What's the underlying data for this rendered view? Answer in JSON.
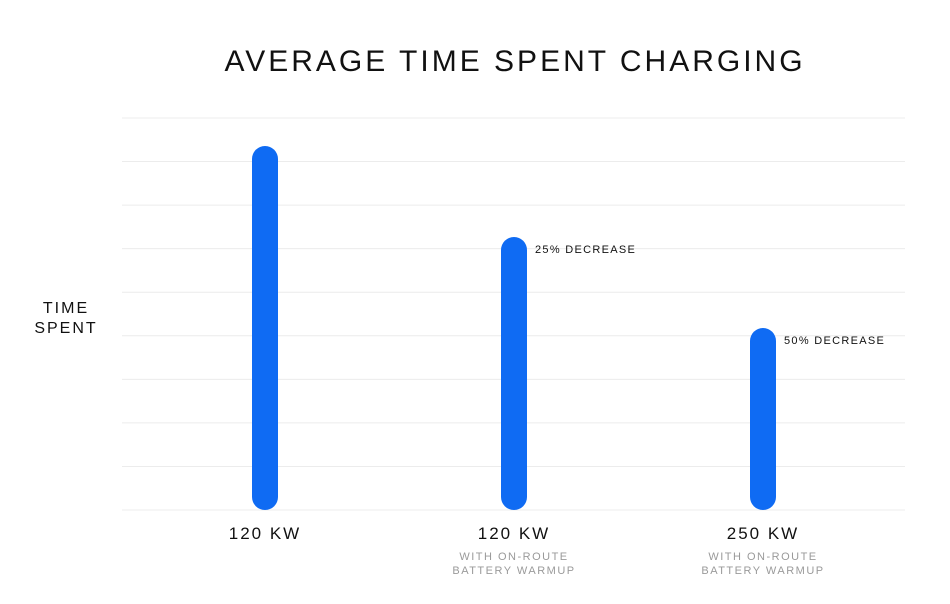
{
  "chart_data": {
    "type": "bar",
    "title": "AVERAGE TIME SPENT CHARGING",
    "ylabel_lines": [
      "TIME",
      "SPENT"
    ],
    "categories": [
      "120 KW",
      "120 KW",
      "250 KW"
    ],
    "category_sublabels": [
      [],
      [
        "WITH ON-ROUTE",
        "BATTERY WARMUP"
      ],
      [
        "WITH ON-ROUTE",
        "BATTERY WARMUP"
      ]
    ],
    "values": [
      100,
      75,
      50
    ],
    "annotations": [
      "",
      "25% DECREASE",
      "50% DECREASE"
    ],
    "ylim": [
      0,
      100
    ],
    "grid": true,
    "bar_color": "#0f6bf3"
  }
}
